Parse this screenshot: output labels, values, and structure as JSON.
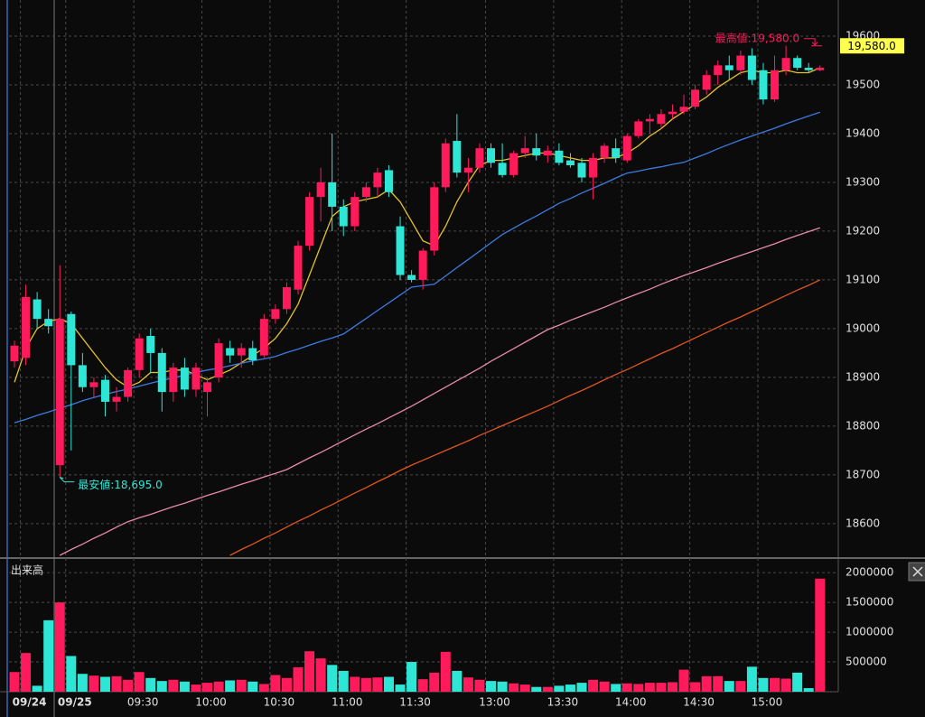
{
  "chart_data": [
    {
      "type": "candlestick",
      "open": [
        18933,
        18940,
        19060,
        19020,
        18720,
        19030,
        18925,
        18880,
        18895,
        18850,
        18860,
        18915,
        18985,
        18950,
        18870,
        18920,
        18875,
        18870,
        18900,
        18960,
        18945,
        18960,
        18945,
        19020,
        19040,
        19080,
        19170,
        19270,
        19300,
        19250,
        19210,
        19270,
        19290,
        19325,
        19210,
        19110,
        19100,
        19160,
        19290,
        19385,
        19320,
        19330,
        19370,
        19340,
        19315,
        19360,
        19370,
        19355,
        19365,
        19345,
        19340,
        19310,
        19350,
        19370,
        19345,
        19395,
        19425,
        19420,
        19440,
        19445,
        19455,
        19490,
        19520,
        19540,
        19530,
        19560,
        19530,
        19470,
        19530,
        19555,
        19535,
        19530
      ],
      "high": [
        18975,
        19090,
        19075,
        19040,
        19130,
        19035,
        18950,
        18900,
        18905,
        18880,
        18920,
        18990,
        19000,
        18960,
        18930,
        18940,
        18930,
        18900,
        18980,
        18975,
        18970,
        18975,
        19030,
        19050,
        19095,
        19180,
        19280,
        19330,
        19400,
        19265,
        19280,
        19300,
        19330,
        19335,
        19230,
        19120,
        19165,
        19300,
        19390,
        19440,
        19350,
        19380,
        19380,
        19380,
        19365,
        19395,
        19400,
        19375,
        19380,
        19360,
        19350,
        19360,
        19380,
        19390,
        19400,
        19430,
        19440,
        19450,
        19460,
        19480,
        19500,
        19530,
        19550,
        19560,
        19570,
        19575,
        19545,
        19560,
        19580,
        19560,
        19545,
        19540
      ],
      "low": [
        18920,
        18925,
        19000,
        18990,
        18695,
        18750,
        18870,
        18860,
        18820,
        18830,
        18850,
        18900,
        18910,
        18830,
        18850,
        18860,
        18860,
        18820,
        18890,
        18930,
        18920,
        18925,
        18940,
        19010,
        19030,
        19070,
        19160,
        19220,
        19200,
        19190,
        19200,
        19260,
        19270,
        19270,
        19100,
        19095,
        19080,
        19150,
        19280,
        19310,
        19280,
        19320,
        19330,
        19310,
        19310,
        19350,
        19345,
        19340,
        19335,
        19330,
        19300,
        19265,
        19340,
        19340,
        19340,
        19390,
        19400,
        19410,
        19430,
        19440,
        19450,
        19480,
        19500,
        19510,
        19520,
        19500,
        19460,
        19465,
        19520,
        19530,
        19525,
        19528
      ],
      "close": [
        18965,
        19065,
        19020,
        19005,
        19020,
        18925,
        18880,
        18890,
        18850,
        18860,
        18915,
        18980,
        18950,
        18870,
        18920,
        18875,
        18920,
        18890,
        18970,
        18945,
        18960,
        18935,
        19020,
        19040,
        19085,
        19170,
        19270,
        19300,
        19250,
        19210,
        19270,
        19290,
        19320,
        19280,
        19110,
        19100,
        19160,
        19290,
        19380,
        19320,
        19330,
        19370,
        19340,
        19315,
        19360,
        19370,
        19355,
        19365,
        19340,
        19335,
        19310,
        19350,
        19375,
        19350,
        19395,
        19425,
        19430,
        19440,
        19445,
        19455,
        19490,
        19520,
        19540,
        19530,
        19560,
        19510,
        19470,
        19530,
        19555,
        19535,
        19530,
        19535
      ],
      "up_color": "#ff1a5c",
      "down_color": "#2ee6d6",
      "series": [
        {
          "color": "#e6c229",
          "values": [
            18890,
            18960,
            19000,
            19015,
            19020,
            19010,
            18980,
            18950,
            18920,
            18895,
            18880,
            18890,
            18910,
            18910,
            18915,
            18915,
            18905,
            18895,
            18905,
            18915,
            18930,
            18945,
            18960,
            18980,
            19010,
            19050,
            19110,
            19170,
            19230,
            19250,
            19260,
            19265,
            19270,
            19285,
            19260,
            19220,
            19180,
            19170,
            19210,
            19260,
            19300,
            19335,
            19345,
            19345,
            19350,
            19355,
            19360,
            19360,
            19355,
            19350,
            19345,
            19345,
            19350,
            19350,
            19360,
            19375,
            19395,
            19410,
            19430,
            19445,
            19460,
            19475,
            19495,
            19510,
            19525,
            19530,
            19525,
            19525,
            19530,
            19525,
            19525,
            19535
          ]
        },
        {
          "color": "#3d7be0",
          "values": [
            18807,
            18814,
            18822,
            18829,
            18837,
            18844,
            18852,
            18859,
            18865,
            18871,
            18876,
            18882,
            18888,
            18894,
            18899,
            18905,
            18910,
            18915,
            18919,
            18924,
            18929,
            18934,
            18938,
            18943,
            18951,
            18958,
            18966,
            18974,
            18981,
            18989,
            19005,
            19021,
            19037,
            19053,
            19069,
            19085,
            19088,
            19091,
            19108,
            19125,
            19142,
            19159,
            19176,
            19193,
            19206,
            19219,
            19231,
            19244,
            19257,
            19267,
            19278,
            19288,
            19298,
            19309,
            19319,
            19323,
            19328,
            19332,
            19337,
            19341,
            19350,
            19359,
            19369,
            19378,
            19387,
            19395,
            19403,
            19411,
            19420,
            19428,
            19436,
            19444
          ]
        },
        {
          "color": "#e88aa8",
          "values": [
            null,
            null,
            null,
            null,
            18535,
            18547,
            18558,
            18570,
            18581,
            18593,
            18604,
            18612,
            18619,
            18627,
            18635,
            18642,
            18650,
            18658,
            18665,
            18673,
            18681,
            18688,
            18696,
            18703,
            18711,
            18723,
            18735,
            18746,
            18758,
            18770,
            18782,
            18794,
            18805,
            18817,
            18829,
            18841,
            18854,
            18867,
            18880,
            18893,
            18906,
            18919,
            18933,
            18946,
            18959,
            18972,
            18985,
            18998,
            19007,
            19017,
            19026,
            19035,
            19044,
            19054,
            19063,
            19072,
            19081,
            19091,
            19100,
            19109,
            19117,
            19125,
            19134,
            19142,
            19150,
            19158,
            19166,
            19174,
            19183,
            19191,
            19199,
            19207
          ]
        },
        {
          "color": "#e0561f",
          "values": [
            null,
            null,
            null,
            null,
            null,
            null,
            null,
            null,
            null,
            null,
            null,
            null,
            null,
            null,
            null,
            null,
            null,
            null,
            null,
            18535,
            18547,
            18558,
            18570,
            18581,
            18593,
            18605,
            18616,
            18628,
            18639,
            18651,
            18663,
            18674,
            18686,
            18697,
            18709,
            18720,
            18730,
            18740,
            18750,
            18760,
            18770,
            18781,
            18791,
            18801,
            18811,
            18821,
            18831,
            18841,
            18852,
            18863,
            18873,
            18884,
            18895,
            18906,
            18916,
            18927,
            18938,
            18949,
            18959,
            18970,
            18981,
            18992,
            19003,
            19014,
            19024,
            19035,
            19046,
            19057,
            19068,
            19079,
            19089,
            19100
          ]
        }
      ],
      "ylim": [
        18535,
        19674
      ],
      "yticks": [
        18600,
        18700,
        18800,
        18900,
        19000,
        19100,
        19200,
        19300,
        19400,
        19500,
        19600
      ],
      "grid": true,
      "high_annotation": {
        "value": 19580,
        "label": "最高値:19,580.0",
        "color": "#ff1a5c"
      },
      "low_annotation": {
        "value": 18695,
        "label": "最安値:18,695.0",
        "color": "#2ee6d6"
      },
      "price_label": {
        "value": 19580,
        "label": "19,580.0",
        "color": "#ffff4d"
      }
    },
    {
      "type": "bar",
      "title": "出来高",
      "categories": [
        null,
        "09/24",
        null,
        null,
        null,
        "09/25",
        null,
        null,
        null,
        null,
        null,
        "09:30",
        null,
        null,
        null,
        null,
        null,
        "10:00",
        null,
        null,
        null,
        null,
        null,
        "10:30",
        null,
        null,
        null,
        null,
        null,
        "11:00",
        null,
        null,
        null,
        null,
        null,
        "11:30",
        null,
        null,
        null,
        null,
        null,
        null,
        "13:00",
        null,
        null,
        null,
        null,
        null,
        "13:30",
        null,
        null,
        null,
        null,
        null,
        "14:00",
        null,
        null,
        null,
        null,
        null,
        "14:30",
        null,
        null,
        null,
        null,
        null,
        "15:00",
        null,
        null,
        null,
        null,
        null
      ],
      "values": [
        330000,
        650000,
        100000,
        1200000,
        1500000,
        600000,
        300000,
        270000,
        250000,
        260000,
        200000,
        330000,
        230000,
        180000,
        200000,
        170000,
        120000,
        150000,
        170000,
        190000,
        200000,
        170000,
        130000,
        280000,
        230000,
        410000,
        680000,
        560000,
        450000,
        350000,
        250000,
        230000,
        240000,
        250000,
        120000,
        500000,
        210000,
        320000,
        670000,
        350000,
        240000,
        200000,
        180000,
        170000,
        140000,
        120000,
        80000,
        80000,
        100000,
        120000,
        150000,
        200000,
        170000,
        130000,
        140000,
        130000,
        150000,
        150000,
        160000,
        370000,
        160000,
        260000,
        260000,
        180000,
        180000,
        420000,
        230000,
        230000,
        220000,
        320000,
        60000,
        1900000
      ],
      "ylim": [
        0,
        2200000
      ],
      "yticks": [
        500000,
        1000000,
        1500000,
        2000000
      ],
      "grid": true
    }
  ]
}
